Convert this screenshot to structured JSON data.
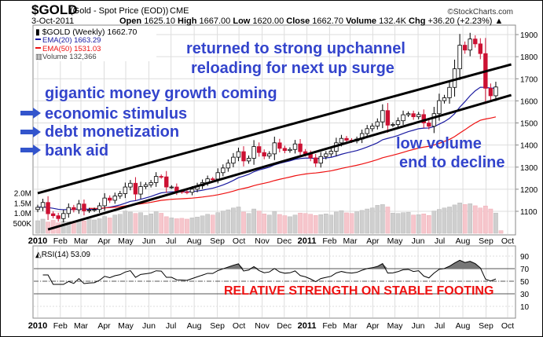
{
  "header": {
    "symbol": "$GOLD",
    "name": "(Gold - Spot Price (EOD))",
    "exchange": "CME",
    "watermark": "©StockCharts.com",
    "date": "3-Oct-2011",
    "open_label": "Open",
    "open": "1625.10",
    "high_label": "High",
    "high": "1667.00",
    "low_label": "Low",
    "low": "1620.00",
    "close_label": "Close",
    "close": "1662.70",
    "volume_label": "Volume",
    "volume": "132.4K",
    "chg_label": "Chg",
    "chg": "+36.20 (+2.23%)"
  },
  "legend": {
    "main": "$GOLD (Weekly) 1662.70",
    "ema20": "EMA(20) 1663.29",
    "ema50": "EMA(50) 1531.03",
    "volume": "Volume 132,366",
    "rsi": "RSI(14) 53.09"
  },
  "annotations": {
    "line1": "returned to strong upchannel",
    "line2": "reloading for next up surge",
    "line3": "gigantic money growth coming",
    "bullet1": "economic stimulus",
    "bullet2": "debt monetization",
    "bullet3": "bank aid",
    "line4": "low volume",
    "line5": "end to decline",
    "rsi_caption": "RELATIVE STRENGTH ON STABLE FOOTING"
  },
  "colors": {
    "up": "#000000",
    "down": "#cc1133",
    "ema20": "#1a1aa0",
    "ema50": "#ee1111",
    "annotation": "#3344cc",
    "rsi_caption": "#ee1111"
  },
  "chart_data": {
    "type": "candlestick",
    "title": "$GOLD (Weekly)",
    "price_axis": {
      "ticks": [
        "1100",
        "1200",
        "1300",
        "1400",
        "1500",
        "1600",
        "1700",
        "1800",
        "1900"
      ],
      "range": [
        1050,
        1930
      ]
    },
    "volume_axis": {
      "ticks": [
        "500K",
        "1.0M",
        "1.5M",
        "2.0M"
      ]
    },
    "rsi_axis": {
      "ticks": [
        "10",
        "30",
        "50",
        "70",
        "90"
      ],
      "range": [
        0,
        100
      ]
    },
    "x_labels": [
      {
        "label": "2010",
        "week": 0
      },
      {
        "label": "Feb",
        "week": 4.4
      },
      {
        "label": "Mar",
        "week": 8.4
      },
      {
        "label": "Apr",
        "week": 12.9
      },
      {
        "label": "May",
        "week": 17.1
      },
      {
        "label": "Jun",
        "week": 21.6
      },
      {
        "label": "Jul",
        "week": 25.9
      },
      {
        "label": "Aug",
        "week": 30.4
      },
      {
        "label": "Sep",
        "week": 34.9
      },
      {
        "label": "Oct",
        "week": 39.1
      },
      {
        "label": "Nov",
        "week": 43.6
      },
      {
        "label": "Dec",
        "week": 47.9
      },
      {
        "label": "2011",
        "week": 52.3
      },
      {
        "label": "Feb",
        "week": 56.7
      },
      {
        "label": "Mar",
        "week": 60.7
      },
      {
        "label": "Apr",
        "week": 65.1
      },
      {
        "label": "May",
        "week": 69.4
      },
      {
        "label": "Jun",
        "week": 73.9
      },
      {
        "label": "Jul",
        "week": 78.1
      },
      {
        "label": "Aug",
        "week": 82.6
      },
      {
        "label": "Sep",
        "week": 87.1
      },
      {
        "label": "Oct",
        "week": 91.3
      }
    ],
    "closes": [
      1118,
      1140,
      1089,
      1080,
      1067,
      1090,
      1117,
      1107,
      1133,
      1102,
      1106,
      1108,
      1125,
      1160,
      1150,
      1169,
      1180,
      1210,
      1227,
      1178,
      1212,
      1220,
      1230,
      1258,
      1256,
      1210,
      1210,
      1190,
      1188,
      1186,
      1200,
      1215,
      1230,
      1247,
      1246,
      1275,
      1296,
      1318,
      1345,
      1370,
      1328,
      1340,
      1393,
      1366,
      1350,
      1360,
      1410,
      1385,
      1375,
      1380,
      1405,
      1370,
      1360,
      1342,
      1318,
      1348,
      1360,
      1372,
      1410,
      1430,
      1422,
      1419,
      1427,
      1452,
      1474,
      1486,
      1505,
      1556,
      1490,
      1493,
      1510,
      1537,
      1542,
      1528,
      1538,
      1500,
      1485,
      1542,
      1601,
      1614,
      1661,
      1745,
      1852,
      1830,
      1880,
      1858,
      1814,
      1657,
      1623,
      1662.7
    ],
    "volumes_k": [
      620,
      700,
      560,
      640,
      520,
      600,
      580,
      560,
      640,
      610,
      700,
      660,
      720,
      830,
      760,
      900,
      940,
      1100,
      1050,
      980,
      1020,
      880,
      960,
      1060,
      990,
      820,
      760,
      720,
      740,
      700,
      760,
      800,
      860,
      940,
      900,
      1020,
      1100,
      1160,
      1250,
      1300,
      1050,
      980,
      1200,
      1100,
      960,
      900,
      1080,
      930,
      870,
      820,
      900,
      1000,
      980,
      940,
      880,
      920,
      960,
      900,
      1050,
      1120,
      1010,
      980,
      1060,
      1130,
      1200,
      1250,
      1380,
      1420,
      1300,
      1000,
      980,
      1020,
      1040,
      900,
      920,
      960,
      880,
      1100,
      1180,
      1250,
      1300,
      1400,
      1500,
      1420,
      1460,
      1360,
      1250,
      1350,
      1200,
      1000,
      132
    ],
    "trendlines": [
      {
        "name": "upper channel",
        "from": {
          "week": 0,
          "price": 1182
        },
        "to": {
          "week": 92,
          "price": 1765
        }
      },
      {
        "name": "lower channel",
        "from": {
          "week": 2,
          "price": 1018
        },
        "to": {
          "week": 92,
          "price": 1626
        }
      }
    ],
    "rsi_levels": [
      30,
      50,
      70
    ]
  }
}
